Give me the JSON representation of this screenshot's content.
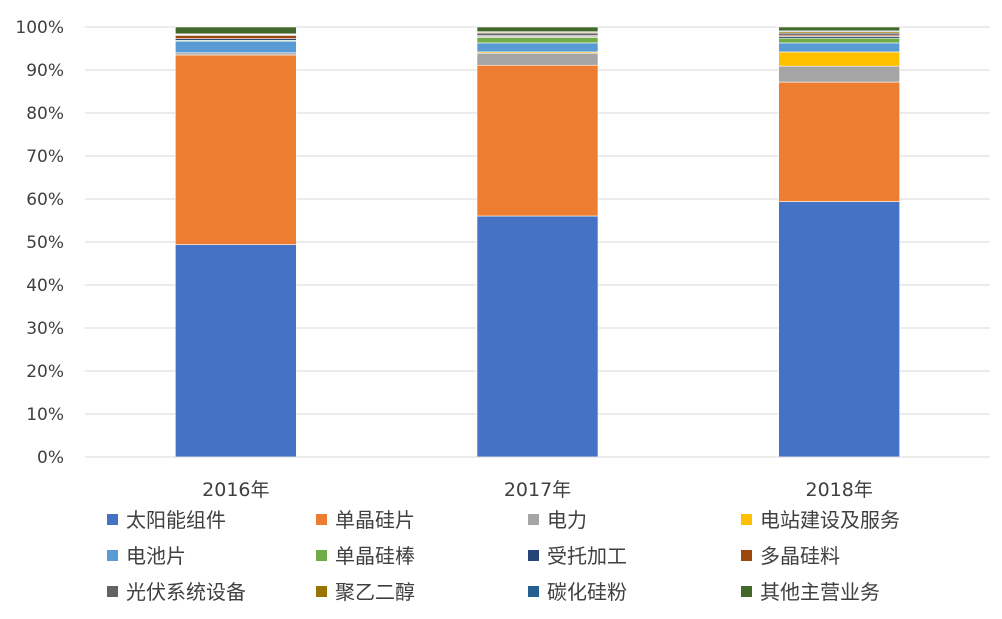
{
  "chart_data": {
    "type": "bar",
    "stacked": true,
    "normalized": true,
    "title": "",
    "xlabel": "",
    "ylabel": "",
    "ylim": [
      0,
      100
    ],
    "yticks": [
      "0%",
      "10%",
      "20%",
      "30%",
      "40%",
      "50%",
      "60%",
      "70%",
      "80%",
      "90%",
      "100%"
    ],
    "grid": true,
    "legend_position": "bottom",
    "categories": [
      "2016年",
      "2017年",
      "2018年"
    ],
    "series": [
      {
        "name": "太阳能组件",
        "color": "#4472C4",
        "values": [
          49.4,
          56.1,
          59.4
        ]
      },
      {
        "name": "单晶硅片",
        "color": "#ED7D31",
        "values": [
          44.1,
          35.1,
          27.8
        ]
      },
      {
        "name": "电力",
        "color": "#A5A5A5",
        "values": [
          0.5,
          2.8,
          3.7
        ]
      },
      {
        "name": "电站建设及服务",
        "color": "#FFC000",
        "values": [
          0.0,
          0.3,
          3.3
        ]
      },
      {
        "name": "电池片",
        "color": "#5B9BD5",
        "values": [
          2.7,
          2.1,
          2.1
        ]
      },
      {
        "name": "单晶硅棒",
        "color": "#70AD47",
        "values": [
          0.2,
          1.3,
          1.1
        ]
      },
      {
        "name": "受托加工",
        "color": "#264478",
        "values": [
          0.4,
          0.2,
          0.4
        ]
      },
      {
        "name": "多晶硅料",
        "color": "#9E480E",
        "values": [
          0.7,
          0.2,
          0.3
        ]
      },
      {
        "name": "光伏系统设备",
        "color": "#636363",
        "values": [
          0.2,
          0.6,
          0.5
        ]
      },
      {
        "name": "聚乙二醇",
        "color": "#997300",
        "values": [
          0.1,
          0.2,
          0.3
        ]
      },
      {
        "name": "碳化硅粉",
        "color": "#255E91",
        "values": [
          0.1,
          0.1,
          0.2
        ]
      },
      {
        "name": "其他主营业务",
        "color": "#43682B",
        "values": [
          1.6,
          1.1,
          0.9
        ]
      }
    ]
  }
}
